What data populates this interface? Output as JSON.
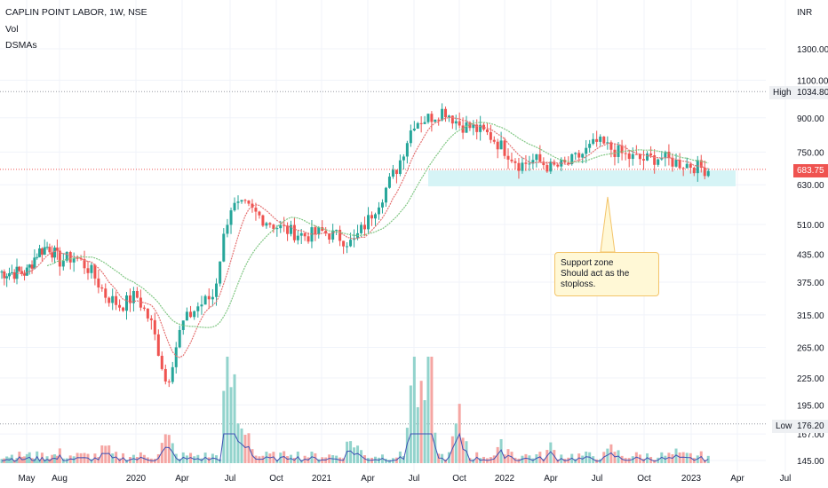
{
  "legend": {
    "title": "CAPLIN POINT LABOR, 1W, NSE",
    "vol": "Vol",
    "dsmas": "DSMAs"
  },
  "currency": "INR",
  "price_scale": {
    "label_high": "High",
    "value_high": "1034.80",
    "value_last": "683.75",
    "label_low": "Low",
    "value_low": "176.20"
  },
  "annotation": {
    "line1": "Support zone",
    "line2": "Should act as the stoploss."
  },
  "colors": {
    "up": "#26a69a",
    "down": "#ef5350",
    "vol_up": "#92d3cc",
    "vol_down": "#f5a6a3",
    "support_zone": "#d6f4f6",
    "sma_fast": "#e57373",
    "sma_slow": "#81c784",
    "vol_ma": "#3f51b5",
    "grid": "#e0e3eb"
  },
  "chart_data": {
    "type": "candlestick",
    "y_axis": {
      "scale": "log",
      "ticks": [
        "1300.00",
        "1100.00",
        "900.00",
        "750.00",
        "630.00",
        "510.00",
        "435.00",
        "375.00",
        "315.00",
        "265.00",
        "225.00",
        "195.00",
        "167.00",
        "145.00"
      ]
    },
    "x_axis": {
      "ticks": [
        "May",
        "Aug",
        "2020",
        "Apr",
        "Jul",
        "Oct",
        "2021",
        "Apr",
        "Jul",
        "Oct",
        "2022",
        "Apr",
        "Jul",
        "Oct",
        "2023",
        "Apr",
        "Jul"
      ]
    },
    "levels": {
      "high": 1034.8,
      "last": 683.75,
      "low": 176.2
    },
    "support_zone": [
      625,
      680
    ],
    "price_series": [
      [
        "2019-05",
        395
      ],
      [
        "2019-06",
        440
      ],
      [
        "2019-07",
        455
      ],
      [
        "2019-08",
        420
      ],
      [
        "2019-09",
        430
      ],
      [
        "2019-10",
        400
      ],
      [
        "2019-11",
        350
      ],
      [
        "2019-12",
        330
      ],
      [
        "2020-01",
        350
      ],
      [
        "2020-02",
        300
      ],
      [
        "2020-03",
        215
      ],
      [
        "2020-04",
        300
      ],
      [
        "2020-05",
        330
      ],
      [
        "2020-06",
        350
      ],
      [
        "2020-07",
        560
      ],
      [
        "2020-08",
        560
      ],
      [
        "2020-09",
        530
      ],
      [
        "2020-10",
        505
      ],
      [
        "2020-11",
        490
      ],
      [
        "2020-12",
        480
      ],
      [
        "2021-01",
        490
      ],
      [
        "2021-02",
        480
      ],
      [
        "2021-03",
        460
      ],
      [
        "2021-04",
        520
      ],
      [
        "2021-05",
        600
      ],
      [
        "2021-06",
        700
      ],
      [
        "2021-07",
        880
      ],
      [
        "2021-08",
        900
      ],
      [
        "2021-09",
        940
      ],
      [
        "2021-10",
        870
      ],
      [
        "2021-11",
        850
      ],
      [
        "2021-12",
        820
      ],
      [
        "2022-01",
        760
      ],
      [
        "2022-02",
        700
      ],
      [
        "2022-03",
        720
      ],
      [
        "2022-04",
        690
      ],
      [
        "2022-05",
        700
      ],
      [
        "2022-06",
        740
      ],
      [
        "2022-07",
        790
      ],
      [
        "2022-08",
        760
      ],
      [
        "2022-09",
        730
      ],
      [
        "2022-10",
        720
      ],
      [
        "2022-11",
        730
      ],
      [
        "2022-12",
        710
      ],
      [
        "2023-01",
        700
      ],
      [
        "2023-02",
        683.75
      ]
    ],
    "volume_series": [
      [
        "2019-08",
        2
      ],
      [
        "2019-11",
        3
      ],
      [
        "2020-03",
        5
      ],
      [
        "2020-07",
        18
      ],
      [
        "2020-08",
        8
      ],
      [
        "2020-11",
        3
      ],
      [
        "2021-03",
        5
      ],
      [
        "2021-07",
        20
      ],
      [
        "2021-08",
        18
      ],
      [
        "2021-10",
        8
      ],
      [
        "2022-01",
        4
      ],
      [
        "2022-04",
        3
      ],
      [
        "2022-08",
        3
      ],
      [
        "2022-12",
        2
      ],
      [
        "2023-02",
        1
      ]
    ]
  }
}
